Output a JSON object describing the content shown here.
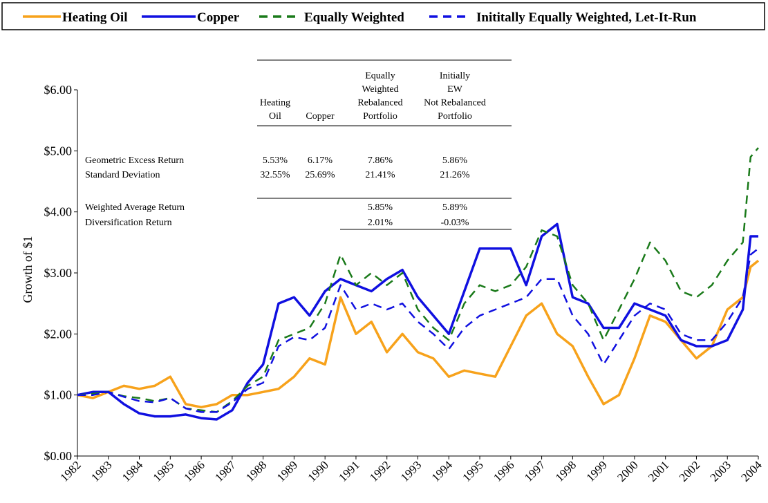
{
  "chart_data": {
    "type": "line",
    "y_label": "Growth of $1",
    "xlim": [
      1982,
      2004
    ],
    "xticks": [
      1982,
      1983,
      1984,
      1985,
      1986,
      1987,
      1988,
      1989,
      1990,
      1991,
      1992,
      1993,
      1994,
      1995,
      1996,
      1997,
      1998,
      1999,
      2000,
      2001,
      2002,
      2003,
      2004
    ],
    "ylim": [
      0,
      6
    ],
    "yticks": [
      {
        "value": 0,
        "label": "$0.00"
      },
      {
        "value": 1,
        "label": "$1.00"
      },
      {
        "value": 2,
        "label": "$2.00"
      },
      {
        "value": 3,
        "label": "$3.00"
      },
      {
        "value": 4,
        "label": "$4.00"
      },
      {
        "value": 5,
        "label": "$5.00"
      },
      {
        "value": 6,
        "label": "$6.00"
      }
    ],
    "x": [
      1982,
      1982.5,
      1983,
      1983.5,
      1984,
      1984.5,
      1985,
      1985.5,
      1986,
      1986.5,
      1987,
      1987.5,
      1988,
      1988.5,
      1989,
      1989.5,
      1990,
      1990.5,
      1991,
      1991.5,
      1992,
      1992.5,
      1993,
      1993.5,
      1994,
      1994.5,
      1995,
      1995.5,
      1996,
      1996.5,
      1997,
      1997.5,
      1998,
      1998.5,
      1999,
      1999.5,
      2000,
      2000.5,
      2001,
      2001.5,
      2002,
      2002.5,
      2003,
      2003.5,
      2003.75,
      2004
    ],
    "series": [
      {
        "name": "Heating Oil",
        "color": "#f7a21b",
        "dash": "solid",
        "values": [
          1.0,
          0.95,
          1.05,
          1.15,
          1.1,
          1.15,
          1.3,
          0.85,
          0.8,
          0.85,
          1.0,
          1.0,
          1.05,
          1.1,
          1.3,
          1.6,
          1.5,
          2.6,
          2.0,
          2.2,
          1.7,
          2.0,
          1.7,
          1.6,
          1.3,
          1.4,
          1.35,
          1.3,
          1.8,
          2.3,
          2.5,
          2.0,
          1.8,
          1.3,
          0.85,
          1.0,
          1.6,
          2.3,
          2.2,
          1.9,
          1.6,
          1.8,
          2.4,
          2.6,
          3.1,
          3.2
        ]
      },
      {
        "name": "Copper",
        "color": "#1010e0",
        "dash": "solid",
        "values": [
          1.0,
          1.05,
          1.05,
          0.85,
          0.7,
          0.65,
          0.65,
          0.68,
          0.62,
          0.6,
          0.75,
          1.2,
          1.5,
          2.5,
          2.6,
          2.3,
          2.7,
          2.9,
          2.8,
          2.7,
          2.9,
          3.05,
          2.6,
          2.3,
          2.0,
          2.7,
          3.4,
          3.4,
          3.4,
          2.8,
          3.6,
          3.8,
          2.6,
          2.5,
          2.1,
          2.1,
          2.5,
          2.4,
          2.3,
          1.9,
          1.8,
          1.8,
          1.9,
          2.4,
          3.6,
          3.6
        ]
      },
      {
        "name": "Equally Weighted",
        "color": "#1a7a1a",
        "dash": "dashed",
        "values": [
          1.0,
          1.02,
          1.05,
          0.98,
          0.95,
          0.9,
          0.95,
          0.78,
          0.75,
          0.72,
          0.9,
          1.15,
          1.3,
          1.9,
          2.0,
          2.1,
          2.5,
          3.3,
          2.8,
          3.0,
          2.8,
          3.0,
          2.4,
          2.1,
          1.9,
          2.5,
          2.8,
          2.7,
          2.8,
          3.1,
          3.7,
          3.6,
          2.8,
          2.5,
          1.9,
          2.4,
          2.9,
          3.5,
          3.2,
          2.7,
          2.6,
          2.8,
          3.2,
          3.5,
          4.9,
          5.05
        ]
      },
      {
        "name": "Inititally Equally Weighted, Let-It-Run",
        "color": "#1010e0",
        "dash": "dashed",
        "values": [
          1.0,
          1.0,
          1.05,
          0.97,
          0.9,
          0.88,
          0.95,
          0.78,
          0.72,
          0.72,
          0.88,
          1.1,
          1.2,
          1.8,
          1.95,
          1.9,
          2.1,
          2.8,
          2.4,
          2.5,
          2.4,
          2.5,
          2.2,
          2.0,
          1.75,
          2.1,
          2.3,
          2.4,
          2.5,
          2.6,
          2.9,
          2.9,
          2.3,
          2.0,
          1.5,
          1.9,
          2.3,
          2.5,
          2.4,
          2.0,
          1.9,
          1.9,
          2.2,
          2.6,
          3.3,
          3.4
        ]
      }
    ]
  },
  "table": {
    "columns": [
      [
        "Heating",
        "Oil"
      ],
      [
        "Copper"
      ],
      [
        "Equally",
        "Weighted",
        "Rebalanced",
        "Portfolio"
      ],
      [
        "Initially",
        "EW",
        "Not Rebalanced",
        "Portfolio"
      ]
    ],
    "rows": [
      [
        "Geometric Excess Return",
        "5.53%",
        "6.17%",
        "7.86%",
        "5.86%"
      ],
      [
        "Standard Deviation",
        "32.55%",
        "25.69%",
        "21.41%",
        "21.26%"
      ],
      [
        "Weighted Average Return",
        null,
        null,
        "5.85%",
        "5.89%"
      ],
      [
        "Diversification Return",
        null,
        null,
        "2.01%",
        "-0.03%"
      ]
    ]
  }
}
